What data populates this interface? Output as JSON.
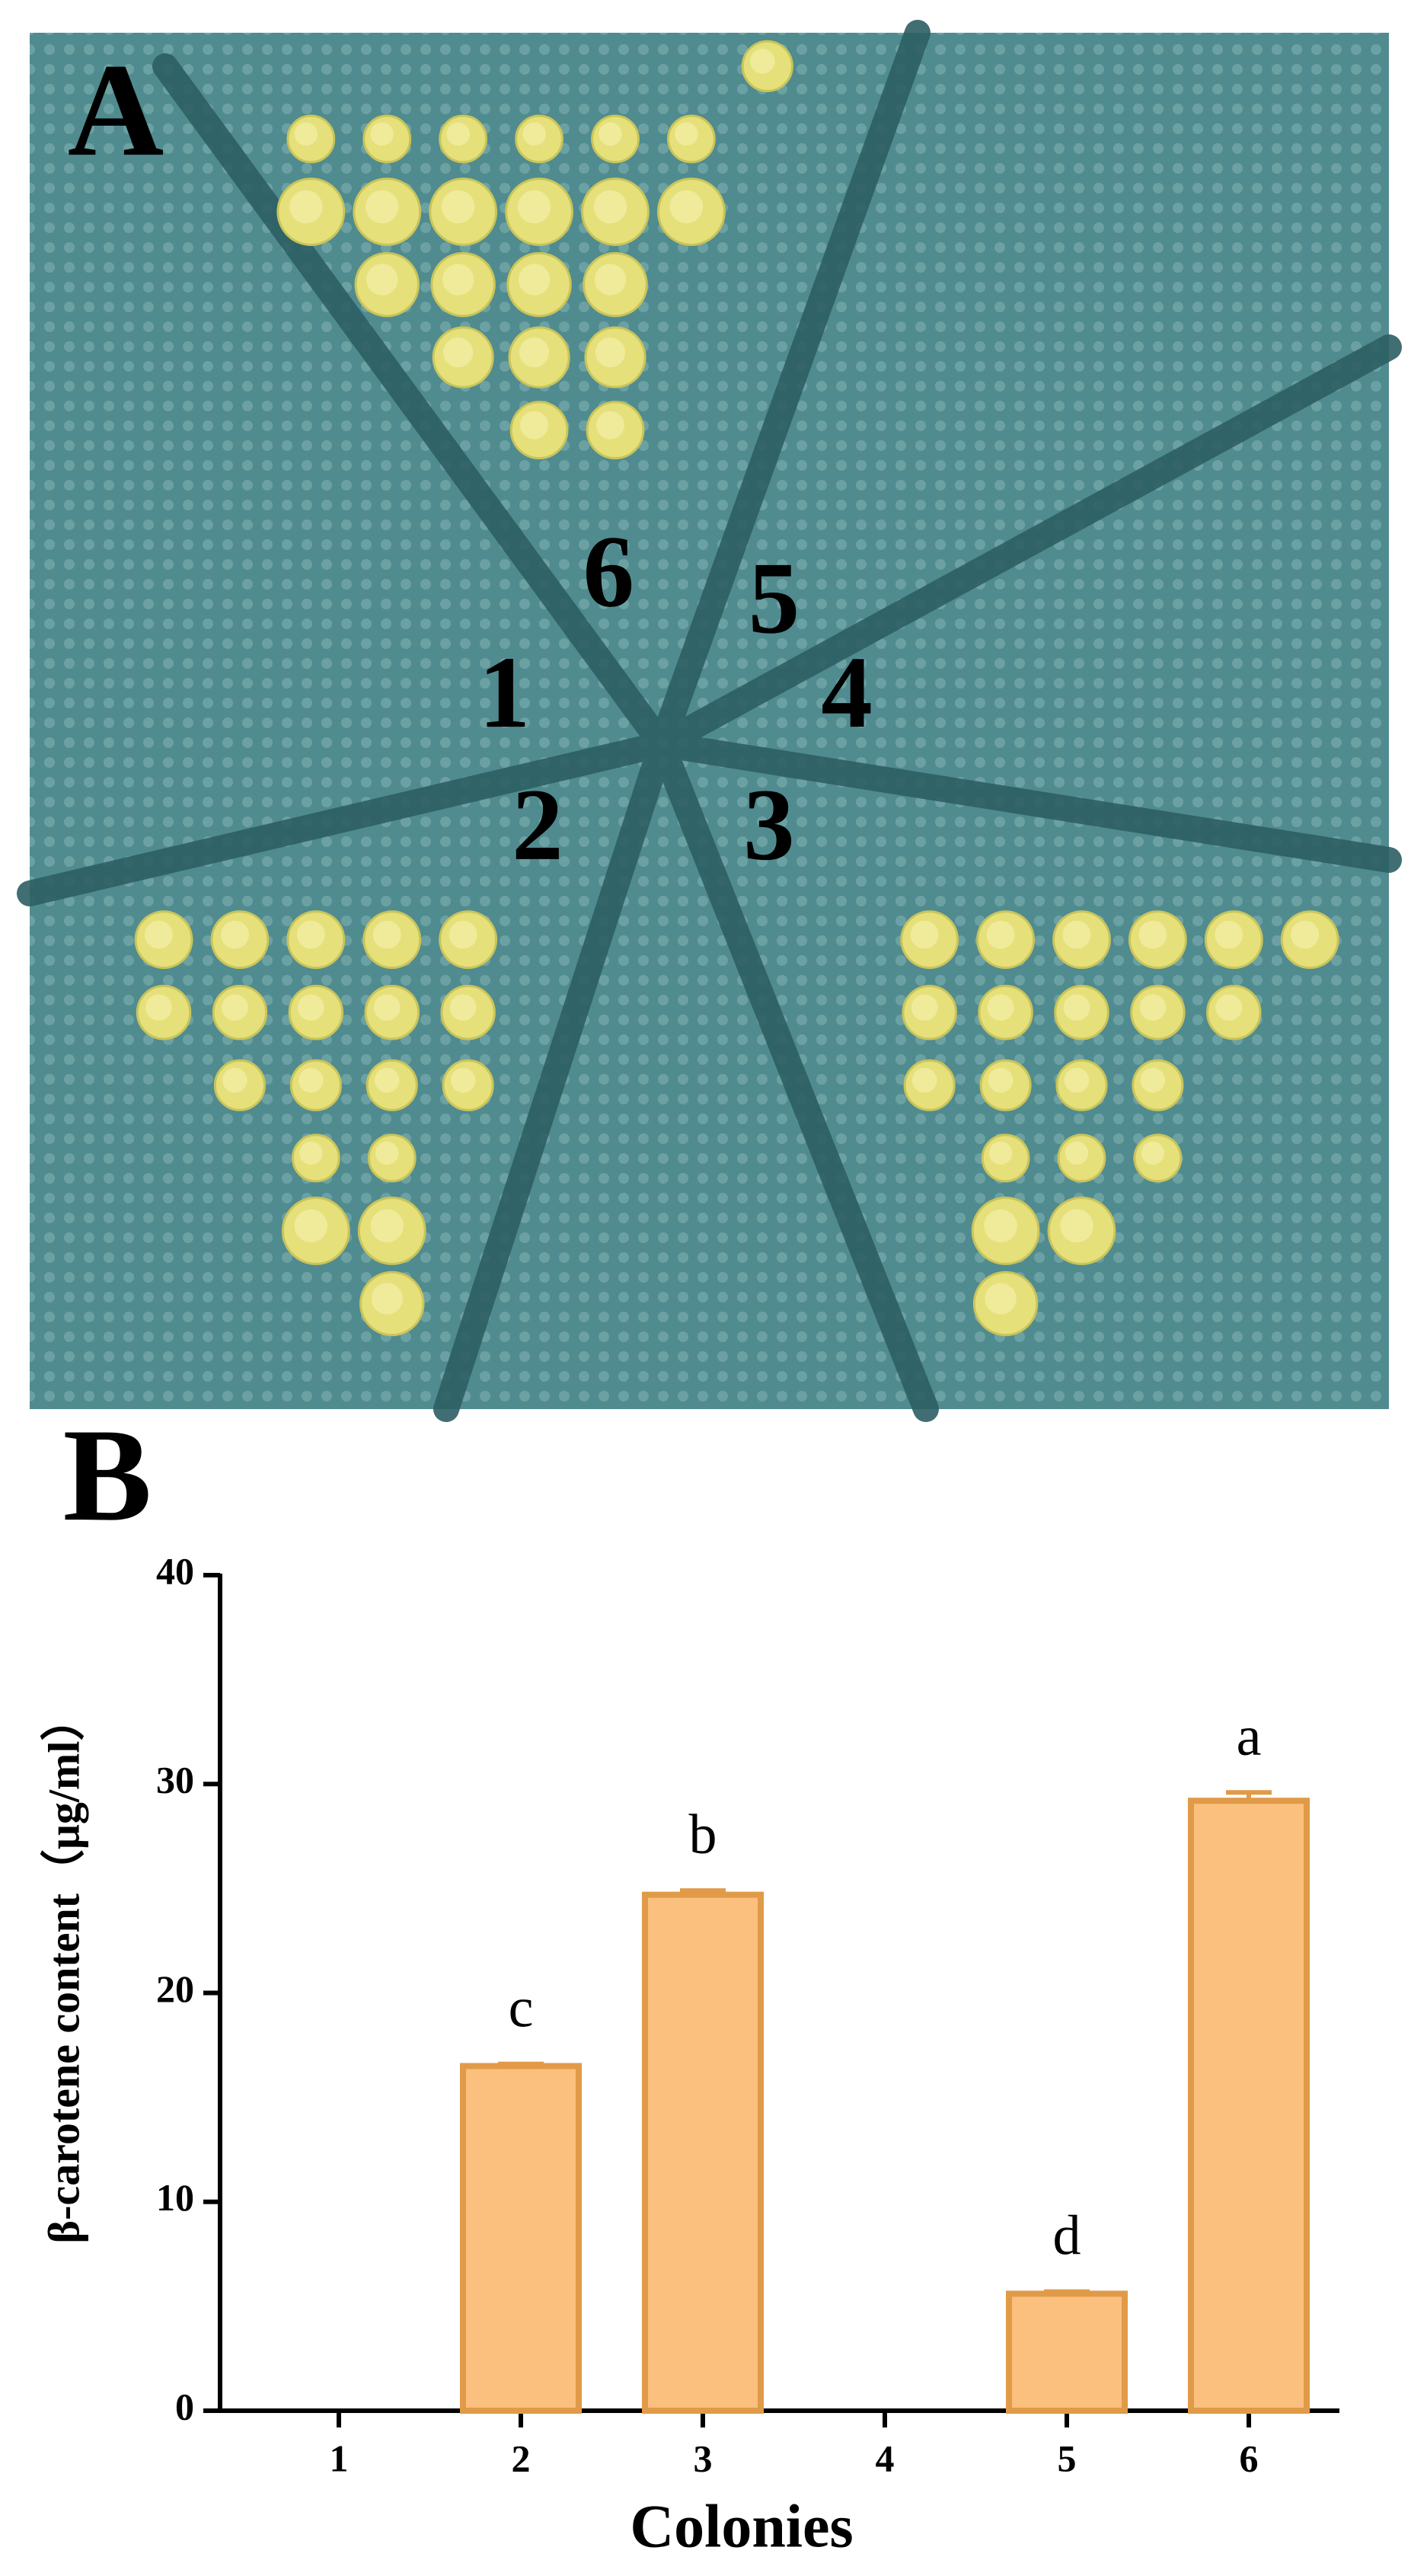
{
  "photo": {
    "label": "A",
    "sector_labels": [
      "1",
      "2",
      "3",
      "4",
      "5",
      "6"
    ]
  },
  "chart_data": {
    "type": "bar",
    "panel_label": "B",
    "xlabel": "Colonies",
    "ylabel": "β-carotene content（μg/ml）",
    "categories": [
      "1",
      "2",
      "3",
      "4",
      "5",
      "6"
    ],
    "values": [
      0,
      16.5,
      24.7,
      0,
      5.6,
      29.2
    ],
    "errors": [
      0,
      0.1,
      0.2,
      0,
      0.1,
      0.4
    ],
    "annotations": [
      null,
      "c",
      "b",
      null,
      "d",
      "a"
    ],
    "color": "#fbbf7e",
    "edge_color": "#e09a48",
    "ylim": [
      0,
      40
    ],
    "yticks": [
      0,
      10,
      20,
      30,
      40
    ]
  }
}
